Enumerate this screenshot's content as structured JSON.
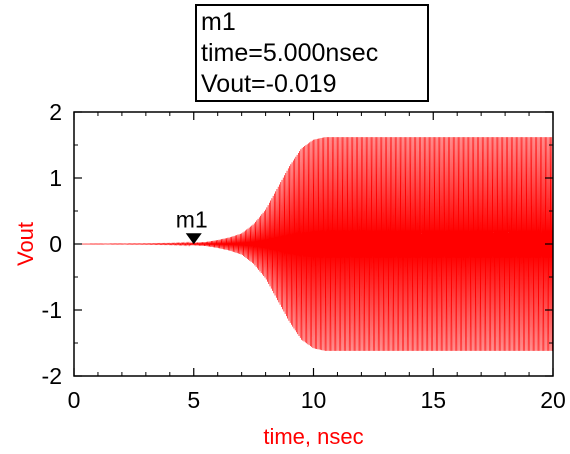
{
  "marker": {
    "name": "m1",
    "time_line": "time=5.000nsec",
    "value_line": "Vout=-0.019"
  },
  "chart_data": {
    "type": "line",
    "title": "",
    "xlabel": "time, nsec",
    "ylabel": "Vout",
    "xlim": [
      0,
      20
    ],
    "ylim": [
      -2,
      2
    ],
    "x_ticks": [
      0,
      5,
      10,
      15,
      20
    ],
    "y_ticks": [
      2,
      1,
      0,
      -1,
      -2
    ],
    "grid": false,
    "series": [
      {
        "color": "#ff0000",
        "style": "dense oscillation (envelope shown)",
        "envelope_time": [
          0,
          3,
          4,
          5,
          5.5,
          6,
          6.5,
          7,
          7.5,
          8,
          8.5,
          9,
          9.5,
          10,
          10.5,
          20
        ],
        "envelope_amplitude": [
          0,
          0.005,
          0.01,
          0.02,
          0.03,
          0.06,
          0.1,
          0.16,
          0.3,
          0.52,
          0.85,
          1.18,
          1.45,
          1.58,
          1.62,
          1.62
        ]
      }
    ],
    "markers": [
      {
        "label": "m1",
        "x": 5.0,
        "y": -0.019
      }
    ],
    "colors": {
      "trace": "#ff0000",
      "axis_label": "#ff0000",
      "axes": "#000000"
    }
  }
}
